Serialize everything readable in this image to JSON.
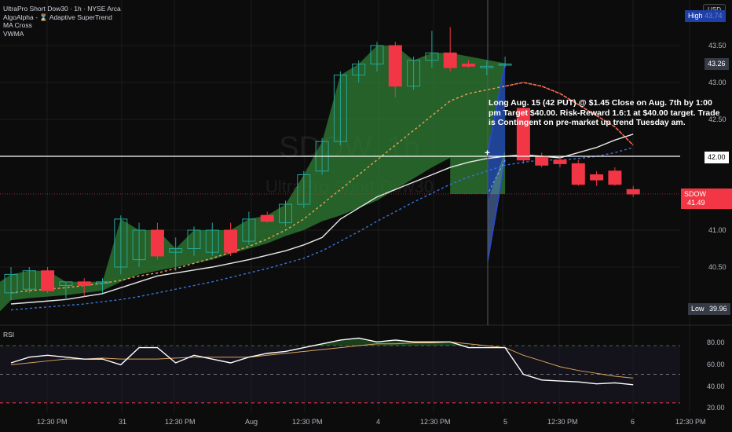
{
  "legend": {
    "title": "UltraPro Short Dow30 · 1h · NYSE Arca",
    "lines": [
      "AlgoAlpha - ⌛ Adaptive SuperTrend",
      "MA Cross",
      "VWMA"
    ]
  },
  "currency_button": "USD",
  "watermark": {
    "symbol": "SDOW, 1h",
    "name": "UltraPro Short Dow30"
  },
  "note": "Long Aug. 15 (42 PUT) @ $1.45 Close on Aug. 7th by 1:00 pm Target $40.00. Risk-Reward 1.6:1 at $40.00 target. Trade is Contingent on pre-market up trend Tuesday am.",
  "price_axis": {
    "ticks": [
      "43.50",
      "43.00",
      "42.50",
      "41.00",
      "40.50"
    ],
    "high_label": "High",
    "high_value": "43.74",
    "current_tag": "43.26",
    "line_tag": "42.00",
    "symbol_tag": "SDOW",
    "symbol_price": "41.49",
    "low_label": "Low",
    "low_value": "39.96"
  },
  "rsi": {
    "label": "RSI",
    "ticks": [
      "80.00",
      "60.00",
      "40.00",
      "20.00"
    ]
  },
  "time_axis": [
    "12:30 PM",
    "31",
    "12:30 PM",
    "Aug",
    "12:30 PM",
    "4",
    "12:30 PM",
    "5",
    "12:30 PM",
    "6",
    "12:30 PM"
  ],
  "colors": {
    "up": "#26a69a",
    "down": "#f23645",
    "supertrend_bull": "#2e7d32",
    "supertrend_bear": "#1e3fa8"
  },
  "chart_data": {
    "type": "candlestick",
    "y_range": [
      39.85,
      43.9
    ],
    "candles": [
      {
        "o": 40.15,
        "h": 40.5,
        "l": 40.05,
        "c": 40.4
      },
      {
        "o": 40.2,
        "h": 40.5,
        "l": 40.15,
        "c": 40.45
      },
      {
        "o": 40.45,
        "h": 40.5,
        "l": 40.15,
        "c": 40.18
      },
      {
        "o": 40.25,
        "h": 40.3,
        "l": 40.05,
        "c": 40.3
      },
      {
        "o": 40.3,
        "h": 40.35,
        "l": 40.1,
        "c": 40.25
      },
      {
        "o": 40.28,
        "h": 40.35,
        "l": 40.15,
        "c": 40.3
      },
      {
        "o": 40.5,
        "h": 41.2,
        "l": 40.4,
        "c": 41.15
      },
      {
        "o": 40.6,
        "h": 41.1,
        "l": 40.5,
        "c": 41.0
      },
      {
        "o": 41.0,
        "h": 41.1,
        "l": 40.6,
        "c": 40.65
      },
      {
        "o": 40.7,
        "h": 40.9,
        "l": 40.45,
        "c": 40.75
      },
      {
        "o": 40.75,
        "h": 41.05,
        "l": 40.65,
        "c": 41.0
      },
      {
        "o": 40.7,
        "h": 41.1,
        "l": 40.65,
        "c": 41.0
      },
      {
        "o": 41.0,
        "h": 41.1,
        "l": 40.65,
        "c": 40.7
      },
      {
        "o": 40.85,
        "h": 41.25,
        "l": 40.8,
        "c": 41.15
      },
      {
        "o": 41.2,
        "h": 41.25,
        "l": 41.1,
        "c": 41.12
      },
      {
        "o": 41.1,
        "h": 41.4,
        "l": 41.05,
        "c": 41.35
      },
      {
        "o": 41.35,
        "h": 41.8,
        "l": 41.3,
        "c": 41.75
      },
      {
        "o": 41.8,
        "h": 42.25,
        "l": 41.75,
        "c": 42.2
      },
      {
        "o": 42.2,
        "h": 43.15,
        "l": 42.15,
        "c": 43.1
      },
      {
        "o": 43.1,
        "h": 43.3,
        "l": 43.0,
        "c": 43.25
      },
      {
        "o": 43.25,
        "h": 43.55,
        "l": 43.15,
        "c": 43.5
      },
      {
        "o": 43.5,
        "h": 43.55,
        "l": 42.8,
        "c": 42.95
      },
      {
        "o": 42.95,
        "h": 43.35,
        "l": 42.9,
        "c": 43.3
      },
      {
        "o": 43.3,
        "h": 43.7,
        "l": 43.2,
        "c": 43.4
      },
      {
        "o": 43.4,
        "h": 43.75,
        "l": 43.15,
        "c": 43.2
      },
      {
        "o": 43.25,
        "h": 43.3,
        "l": 43.2,
        "c": 43.22
      },
      {
        "o": 43.2,
        "h": 43.3,
        "l": 43.1,
        "c": 43.22
      },
      {
        "o": 43.25,
        "h": 43.35,
        "l": 43.2,
        "c": 43.25
      },
      {
        "o": 42.65,
        "h": 42.7,
        "l": 41.9,
        "c": 41.95
      },
      {
        "o": 42.0,
        "h": 42.05,
        "l": 41.85,
        "c": 41.88
      },
      {
        "o": 41.95,
        "h": 42.0,
        "l": 41.85,
        "c": 41.9
      },
      {
        "o": 41.9,
        "h": 41.95,
        "l": 41.6,
        "c": 41.62
      },
      {
        "o": 41.75,
        "h": 41.8,
        "l": 41.6,
        "c": 41.68
      },
      {
        "o": 41.8,
        "h": 41.85,
        "l": 41.6,
        "c": 41.62
      },
      {
        "o": 41.55,
        "h": 41.6,
        "l": 41.45,
        "c": 41.49
      }
    ],
    "rsi_range": [
      10,
      95
    ],
    "rsi_values": [
      62,
      68,
      70,
      68,
      66,
      66,
      60,
      78,
      78,
      62,
      70,
      66,
      62,
      68,
      72,
      74,
      78,
      82,
      86,
      88,
      84,
      86,
      84,
      84,
      84,
      78,
      78,
      78,
      50,
      44,
      43,
      42,
      40,
      41,
      39
    ],
    "rsi_ma": [
      60,
      62,
      64,
      66,
      66,
      67,
      66,
      66,
      66,
      67,
      68,
      68,
      68,
      68,
      70,
      72,
      74,
      76,
      78,
      80,
      82,
      82,
      83,
      83,
      84,
      82,
      80,
      78,
      70,
      64,
      58,
      54,
      51,
      48,
      46
    ]
  }
}
